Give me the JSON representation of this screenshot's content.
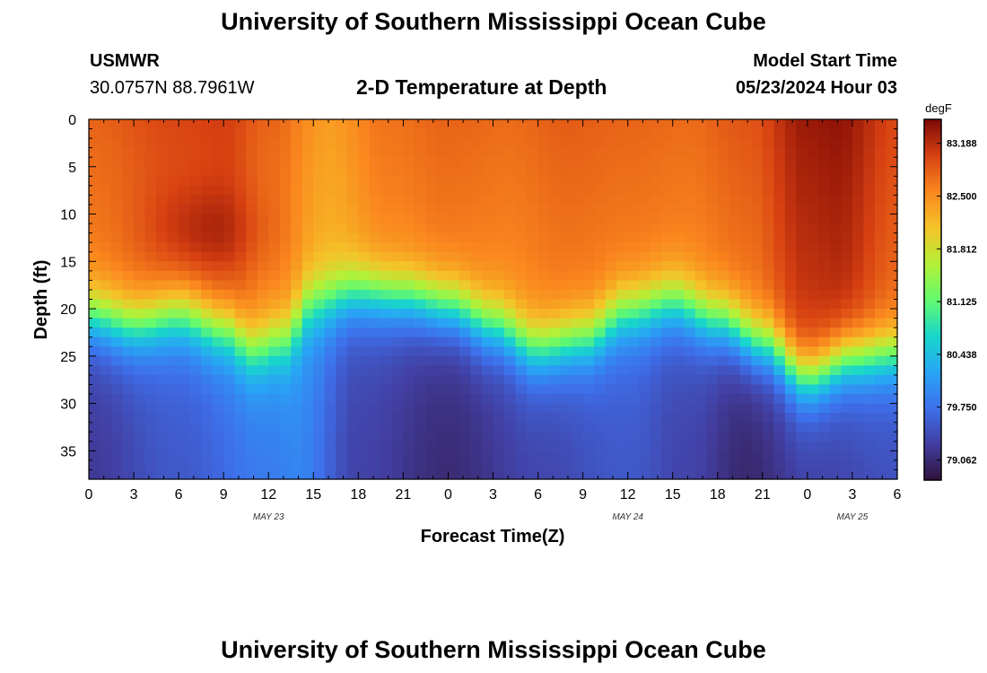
{
  "page": {
    "title_top": "University of Southern Mississippi Ocean Cube",
    "title_bottom": "University of Southern Mississippi Ocean Cube",
    "station": "USMWR",
    "coords": "30.0757N  88.7961W",
    "model_start_label": "Model Start Time",
    "model_start_value": "05/23/2024 Hour 03"
  },
  "chart_data": {
    "type": "heatmap",
    "title": "2-D Temperature at Depth",
    "xlabel": "Forecast Time(Z)",
    "ylabel": "Depth (ft)",
    "colorbar_label": "degF",
    "x_range_hours": [
      0,
      54
    ],
    "y_range_ft": [
      0,
      38
    ],
    "x_ticks": [
      {
        "h": 0,
        "label": "0"
      },
      {
        "h": 3,
        "label": "3"
      },
      {
        "h": 6,
        "label": "6"
      },
      {
        "h": 9,
        "label": "9"
      },
      {
        "h": 12,
        "label": "12"
      },
      {
        "h": 15,
        "label": "15"
      },
      {
        "h": 18,
        "label": "18"
      },
      {
        "h": 21,
        "label": "21"
      },
      {
        "h": 24,
        "label": "0"
      },
      {
        "h": 27,
        "label": "3"
      },
      {
        "h": 30,
        "label": "6"
      },
      {
        "h": 33,
        "label": "9"
      },
      {
        "h": 36,
        "label": "12"
      },
      {
        "h": 39,
        "label": "15"
      },
      {
        "h": 42,
        "label": "18"
      },
      {
        "h": 45,
        "label": "21"
      },
      {
        "h": 48,
        "label": "0"
      },
      {
        "h": 51,
        "label": "3"
      },
      {
        "h": 54,
        "label": "6"
      }
    ],
    "date_labels": [
      {
        "h": 12,
        "label": "MAY 23"
      },
      {
        "h": 36,
        "label": "MAY 24"
      },
      {
        "h": 51,
        "label": "MAY 25"
      }
    ],
    "y_ticks": [
      0,
      5,
      10,
      15,
      20,
      25,
      30,
      35
    ],
    "colorbar_min": 78.8,
    "colorbar_max": 83.5,
    "colorbar_ticks": [
      "83.188",
      "82.500",
      "81.812",
      "81.125",
      "80.438",
      "79.750",
      "79.062"
    ],
    "thermocline_depth_ft": [
      {
        "h": 0,
        "d": 20.5
      },
      {
        "h": 3,
        "d": 21.5
      },
      {
        "h": 6,
        "d": 20.5
      },
      {
        "h": 9,
        "d": 22.0
      },
      {
        "h": 11,
        "d": 24.0
      },
      {
        "h": 13,
        "d": 23.0
      },
      {
        "h": 15,
        "d": 19.0
      },
      {
        "h": 18,
        "d": 18.0
      },
      {
        "h": 21,
        "d": 18.5
      },
      {
        "h": 24,
        "d": 19.5
      },
      {
        "h": 27,
        "d": 21.5
      },
      {
        "h": 30,
        "d": 24.0
      },
      {
        "h": 33,
        "d": 23.0
      },
      {
        "h": 36,
        "d": 20.0
      },
      {
        "h": 39,
        "d": 19.0
      },
      {
        "h": 42,
        "d": 21.0
      },
      {
        "h": 45,
        "d": 23.5
      },
      {
        "h": 48,
        "d": 27.0
      },
      {
        "h": 51,
        "d": 25.0
      },
      {
        "h": 54,
        "d": 24.5
      }
    ],
    "surface_temp_degF": [
      {
        "h": 0,
        "t": 82.8
      },
      {
        "h": 6,
        "t": 83.0
      },
      {
        "h": 9,
        "t": 83.05
      },
      {
        "h": 12,
        "t": 82.8
      },
      {
        "h": 16,
        "t": 82.4
      },
      {
        "h": 20,
        "t": 82.7
      },
      {
        "h": 24,
        "t": 82.8
      },
      {
        "h": 28,
        "t": 82.75
      },
      {
        "h": 32,
        "t": 82.85
      },
      {
        "h": 36,
        "t": 82.8
      },
      {
        "h": 40,
        "t": 82.75
      },
      {
        "h": 44,
        "t": 82.9
      },
      {
        "h": 48,
        "t": 83.35
      },
      {
        "h": 50,
        "t": 83.4
      },
      {
        "h": 54,
        "t": 83.0
      }
    ],
    "bottom_temp_degF": [
      {
        "h": 0,
        "t": 79.2
      },
      {
        "h": 6,
        "t": 79.5
      },
      {
        "h": 12,
        "t": 79.8
      },
      {
        "h": 14,
        "t": 79.9
      },
      {
        "h": 18,
        "t": 79.3
      },
      {
        "h": 24,
        "t": 79.05
      },
      {
        "h": 30,
        "t": 79.3
      },
      {
        "h": 36,
        "t": 79.5
      },
      {
        "h": 40,
        "t": 79.3
      },
      {
        "h": 44,
        "t": 79.0
      },
      {
        "h": 48,
        "t": 79.25
      },
      {
        "h": 54,
        "t": 79.4
      }
    ]
  }
}
